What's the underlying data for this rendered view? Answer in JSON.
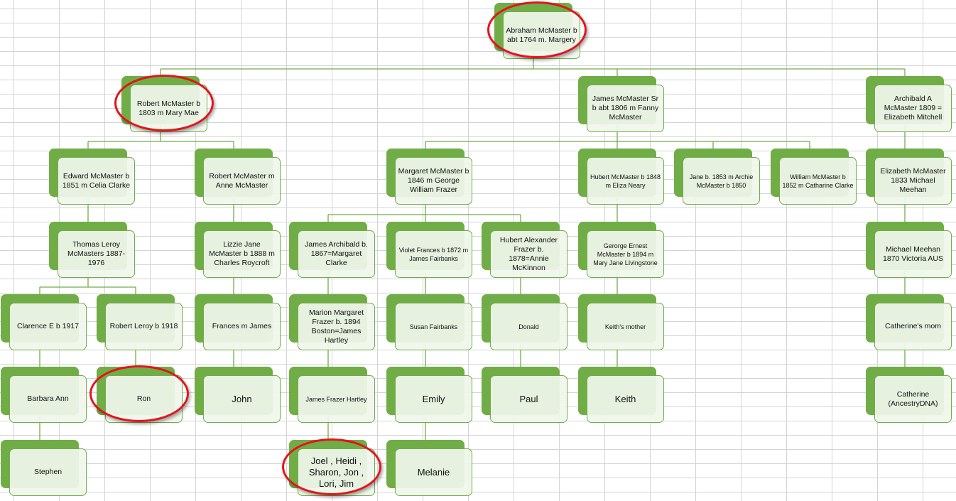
{
  "colors": {
    "box_fill": "#70ad47",
    "box_front": "#f0f6ec",
    "connector": "#70ad47",
    "highlight_ring": "#e3141b",
    "grid": "#d4d4d4"
  },
  "tree": {
    "id": "abraham",
    "label": "Abraham McMaster b abt 1764 m. Margery",
    "highlighted": true,
    "children": [
      {
        "id": "robert",
        "label": "Robert McMaster b 1803 m Mary Mae",
        "highlighted": true,
        "children": [
          {
            "id": "edward",
            "label": "Edward McMaster b 1851 m Celia Clarke",
            "children": [
              {
                "id": "thomas",
                "label": "Thomas Leroy McMasters 1887-1976",
                "children": [
                  {
                    "id": "clarence",
                    "label": "Clarence E b 1917",
                    "children": [
                      {
                        "id": "barbara",
                        "label": "Barbara Ann",
                        "children": [
                          {
                            "id": "stephen",
                            "label": "Stephen",
                            "children": []
                          }
                        ]
                      }
                    ]
                  },
                  {
                    "id": "robertleroy",
                    "label": "Robert Leroy b 1918",
                    "children": [
                      {
                        "id": "ron",
                        "label": "Ron",
                        "highlighted": true,
                        "children": []
                      }
                    ]
                  }
                ]
              }
            ]
          },
          {
            "id": "robert2",
            "label": "Robert McMaster m Anne McMaster",
            "children": [
              {
                "id": "lizzie",
                "label": "Lizzie Jane McMaster b 1888 m Charles Roycroft",
                "children": [
                  {
                    "id": "frances",
                    "label": "Frances m James",
                    "children": [
                      {
                        "id": "john",
                        "label": "John",
                        "children": []
                      }
                    ]
                  }
                ]
              }
            ]
          }
        ]
      },
      {
        "id": "jamessr",
        "label": "James McMaster Sr b abt 1806 m Fanny McMaster",
        "children": [
          {
            "id": "margaret",
            "label": "Margaret McMaster b 1846 m George William Frazer",
            "children": [
              {
                "id": "jamesarch",
                "label": "James Archibald b. 1867=Margaret Clarke",
                "children": [
                  {
                    "id": "marion",
                    "label": "Marion Margaret Frazer b. 1894 Boston=James Hartley",
                    "children": [
                      {
                        "id": "jfh",
                        "label": "James Frazer Hartley",
                        "children": [
                          {
                            "id": "joel",
                            "label": "Joel , Heidi , Sharon, Jon , Lori, Jim",
                            "highlighted": true,
                            "children": []
                          }
                        ]
                      }
                    ]
                  }
                ]
              },
              {
                "id": "violet",
                "label": "Violet Frances b 1872 m James Fairbanks",
                "children": [
                  {
                    "id": "susan",
                    "label": "Susan Fairbanks",
                    "children": [
                      {
                        "id": "emily",
                        "label": "Emily",
                        "children": [
                          {
                            "id": "melanie",
                            "label": "Melanie",
                            "children": []
                          }
                        ]
                      }
                    ]
                  }
                ]
              },
              {
                "id": "hubertalex",
                "label": "Hubert Alexander Frazer b. 1878=Annie McKinnon",
                "children": [
                  {
                    "id": "donald",
                    "label": "Donald",
                    "children": [
                      {
                        "id": "paul",
                        "label": "Paul",
                        "children": []
                      }
                    ]
                  }
                ]
              }
            ]
          },
          {
            "id": "hubert",
            "label": "Hubert McMaster b 1848 m Eliza Neary",
            "children": [
              {
                "id": "george",
                "label": "Gerorge Ernest McMaster b 1894 m Mary Jane LIvingstone",
                "children": [
                  {
                    "id": "keithmom",
                    "label": "Keith's mother",
                    "children": [
                      {
                        "id": "keith",
                        "label": "Keith",
                        "children": []
                      }
                    ]
                  }
                ]
              }
            ]
          },
          {
            "id": "jane",
            "label": "Jane b. 1853 m Archie McMaster b 1850",
            "children": []
          },
          {
            "id": "william",
            "label": "William McMaster b 1852 m Catharine Clarke",
            "children": []
          }
        ]
      },
      {
        "id": "archibald",
        "label": "Archibald A McMaster 1809 = Elizabeth Mitchell",
        "children": [
          {
            "id": "elizabeth",
            "label": "Elizabeth McMaster 1833 Michael Meehan",
            "children": [
              {
                "id": "michael",
                "label": "Michael Meehan 1870 Victoria AUS",
                "children": [
                  {
                    "id": "catmom",
                    "label": "Catherine's mom",
                    "children": [
                      {
                        "id": "catherine",
                        "label": "Catherine (AncestryDNA)",
                        "children": []
                      }
                    ]
                  }
                ]
              }
            ]
          }
        ]
      }
    ]
  }
}
